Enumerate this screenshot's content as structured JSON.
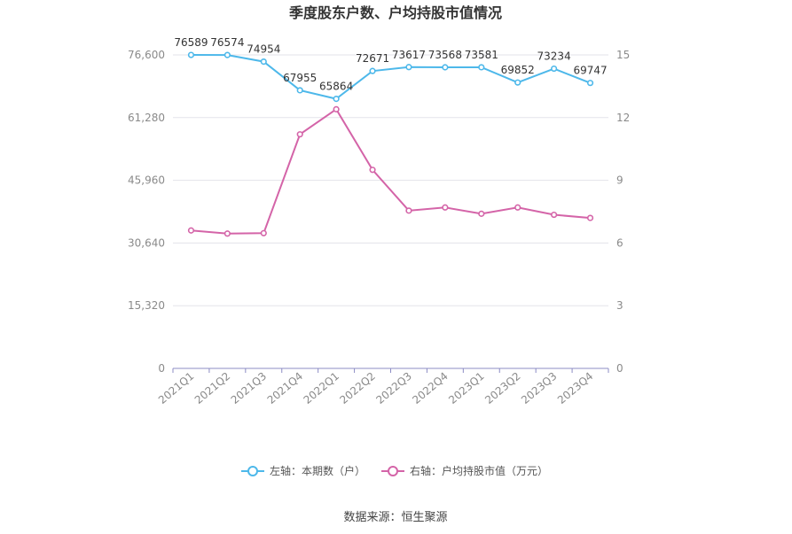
{
  "chart_data": {
    "type": "line",
    "title": "季度股东户数、户均持股市值情况",
    "categories": [
      "2021Q1",
      "2021Q2",
      "2021Q3",
      "2021Q4",
      "2022Q1",
      "2022Q2",
      "2022Q3",
      "2022Q4",
      "2023Q1",
      "2023Q2",
      "2023Q3",
      "2023Q4"
    ],
    "left_axis": {
      "ylim": [
        0,
        76600
      ],
      "ticks": [
        0,
        15320,
        30640,
        45960,
        61280,
        76600
      ],
      "tick_labels": [
        "0",
        "15,320",
        "30,640",
        "45,960",
        "61,280",
        "76,600"
      ]
    },
    "right_axis": {
      "ylim": [
        0,
        15
      ],
      "ticks": [
        0,
        3,
        6,
        9,
        12,
        15
      ],
      "tick_labels": [
        "0",
        "3",
        "6",
        "9",
        "12",
        "15"
      ]
    },
    "series": [
      {
        "name": "左轴：本期数（户）",
        "axis": "left",
        "color": "#4db8ea",
        "values": [
          76589,
          76574,
          74954,
          67955,
          65864,
          72671,
          73617,
          73568,
          73581,
          69852,
          73234,
          69747
        ],
        "labels": [
          "76589",
          "76574",
          "74954",
          "67955",
          "65864",
          "72671",
          "73617",
          "73568",
          "73581",
          "69852",
          "73234",
          "69747"
        ]
      },
      {
        "name": "右轴：户均持股市值（万元）",
        "axis": "right",
        "color": "#d464a8",
        "values": [
          6.6,
          6.45,
          6.47,
          11.2,
          12.4,
          9.5,
          7.55,
          7.7,
          7.4,
          7.7,
          7.35,
          7.2
        ]
      }
    ],
    "legend_position": "bottom",
    "source": "数据来源：恒生聚源"
  }
}
